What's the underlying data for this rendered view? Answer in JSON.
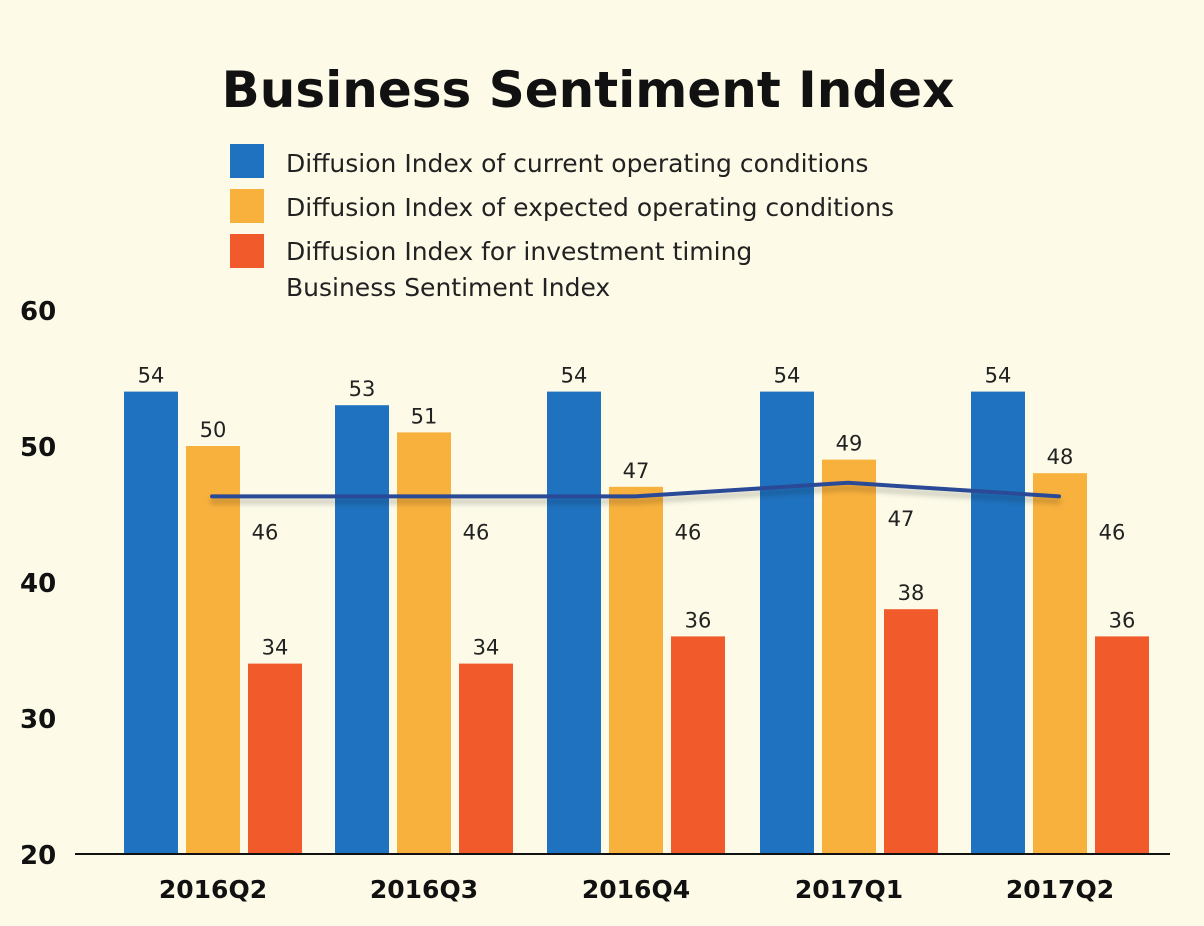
{
  "chart_data": {
    "type": "bar",
    "title": "Business Sentiment Index",
    "categories": [
      "2016Q2",
      "2016Q3",
      "2016Q4",
      "2017Q1",
      "2017Q2"
    ],
    "ylim": [
      20,
      60
    ],
    "yticks": [
      60,
      50,
      40,
      30,
      20
    ],
    "grid": false,
    "legend_position": "top",
    "series": [
      {
        "name": "Diffusion Index of current operating conditions",
        "kind": "bar",
        "color": "#1f72bf",
        "values": [
          54,
          53,
          54,
          54,
          54
        ]
      },
      {
        "name": "Diffusion Index of expected operating conditions",
        "kind": "bar",
        "color": "#f8b13d",
        "values": [
          50,
          51,
          47,
          49,
          48
        ]
      },
      {
        "name": "Diffusion Index for investment timing",
        "kind": "bar",
        "color": "#f15a2b",
        "values": [
          34,
          34,
          36,
          38,
          36
        ]
      },
      {
        "name": "Business Sentiment Index",
        "kind": "line",
        "color": "#2b4a96",
        "values": [
          46,
          46,
          46,
          47,
          46
        ]
      }
    ]
  }
}
